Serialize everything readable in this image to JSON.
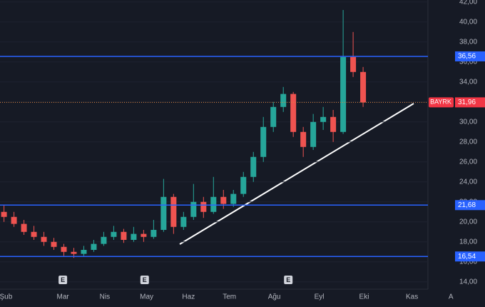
{
  "chart_data": {
    "type": "candlestick",
    "symbol": "BAYRK",
    "up_color": "#26a69a",
    "down_color": "#ef5350",
    "x": [
      0,
      1,
      2,
      3,
      4,
      5,
      6,
      7,
      8,
      9,
      10,
      11,
      12,
      13,
      14,
      15,
      16,
      17,
      18,
      19,
      20,
      21,
      22,
      23,
      24,
      25,
      26,
      27,
      28,
      29,
      30,
      31,
      32,
      33,
      34,
      35,
      36
    ],
    "open": [
      21.0,
      20.5,
      19.8,
      19.0,
      18.5,
      18.0,
      17.5,
      17.0,
      16.8,
      17.2,
      17.8,
      18.5,
      19.0,
      18.2,
      18.8,
      18.5,
      19.2,
      22.5,
      19.5,
      20.5,
      22.0,
      21.0,
      22.5,
      21.8,
      22.8,
      24.5,
      26.5,
      29.5,
      31.5,
      32.8,
      29.0,
      27.5,
      30.0,
      30.5,
      29.0,
      36.5,
      35.0
    ],
    "high": [
      21.7,
      21.0,
      20.2,
      19.6,
      19.0,
      18.4,
      17.8,
      17.4,
      17.6,
      18.2,
      19.0,
      19.6,
      19.3,
      19.5,
      19.2,
      20.2,
      24.3,
      22.8,
      21.0,
      23.8,
      22.5,
      24.5,
      23.2,
      23.2,
      25.0,
      27.0,
      30.5,
      32.0,
      33.5,
      33.0,
      29.5,
      30.8,
      31.5,
      31.2,
      41.2,
      39.0,
      35.5
    ],
    "low": [
      20.0,
      19.5,
      18.7,
      18.2,
      17.6,
      17.2,
      16.6,
      16.4,
      16.6,
      17.0,
      17.6,
      18.2,
      17.9,
      18.0,
      18.0,
      18.3,
      19.0,
      18.8,
      19.2,
      20.2,
      20.4,
      20.8,
      21.3,
      21.5,
      22.5,
      24.0,
      26.0,
      29.0,
      31.0,
      28.5,
      26.5,
      27.2,
      29.2,
      28.0,
      28.8,
      34.5,
      31.5
    ],
    "close": [
      20.5,
      19.8,
      19.0,
      18.5,
      18.0,
      17.5,
      17.0,
      16.8,
      17.2,
      17.8,
      18.5,
      19.0,
      18.2,
      18.8,
      18.5,
      19.2,
      22.5,
      19.5,
      20.5,
      22.0,
      21.0,
      22.5,
      21.8,
      22.8,
      24.5,
      26.5,
      29.5,
      31.5,
      32.8,
      29.0,
      27.5,
      30.0,
      30.5,
      29.0,
      36.5,
      35.0,
      31.96
    ],
    "xlim": [
      -0.4,
      42.5
    ],
    "xticks": [
      {
        "value": 0.2,
        "label": "Şub"
      },
      {
        "value": 5.9,
        "label": "Mar"
      },
      {
        "value": 10.1,
        "label": "Nis"
      },
      {
        "value": 14.3,
        "label": "May"
      },
      {
        "value": 18.5,
        "label": "Haz"
      },
      {
        "value": 22.6,
        "label": "Tem"
      },
      {
        "value": 27.1,
        "label": "Ağu"
      },
      {
        "value": 31.6,
        "label": "Eyl"
      },
      {
        "value": 36.1,
        "label": "Eki"
      },
      {
        "value": 40.9,
        "label": "Kas"
      },
      {
        "value": 44.8,
        "label": "A"
      }
    ],
    "ylim": [
      13.7,
      42.2
    ],
    "yticks": [
      {
        "value": 14,
        "label": "14,00"
      },
      {
        "value": 16,
        "label": "16,00"
      },
      {
        "value": 18,
        "label": "18,00"
      },
      {
        "value": 20,
        "label": "20,00"
      },
      {
        "value": 22,
        "label": "22,00"
      },
      {
        "value": 24,
        "label": "24,00"
      },
      {
        "value": 26,
        "label": "26,00"
      },
      {
        "value": 28,
        "label": "28,00"
      },
      {
        "value": 30,
        "label": "30,00"
      },
      {
        "value": 32,
        "label": "32,00"
      },
      {
        "value": 34,
        "label": "34,00"
      },
      {
        "value": 36,
        "label": "36,00"
      },
      {
        "value": 38,
        "label": "38,00"
      },
      {
        "value": 40,
        "label": "40,00"
      },
      {
        "value": 42,
        "label": "42,00"
      }
    ],
    "levels": [
      {
        "value": 36.56,
        "label": "36,56"
      },
      {
        "value": 21.68,
        "label": "21,68"
      },
      {
        "value": 16.54,
        "label": "16,54"
      }
    ],
    "level_color": "#2962ff",
    "last_price": {
      "value": 31.96,
      "label": "31,96"
    },
    "last_color": "#f23645",
    "events": [
      {
        "x": 5.9,
        "label": "E"
      },
      {
        "x": 14.1,
        "label": "E"
      },
      {
        "x": 28.5,
        "label": "E"
      }
    ]
  }
}
